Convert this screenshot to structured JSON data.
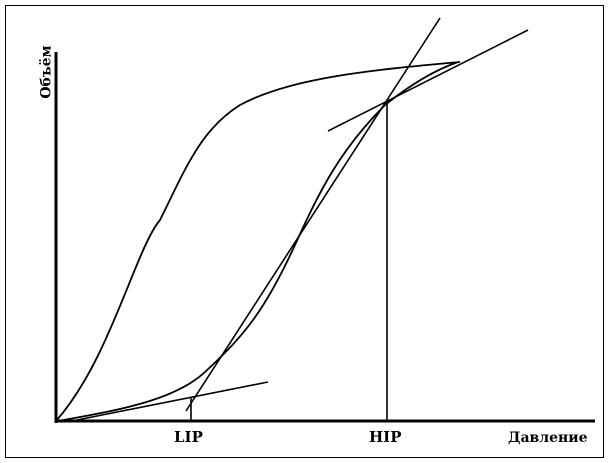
{
  "diagram": {
    "x_axis_label": "Давление",
    "y_axis_label": "Объём",
    "markers": {
      "lip": "LIP",
      "hip": "HIP"
    }
  },
  "style": {
    "stroke_color": "#000000",
    "background": "#ffffff"
  }
}
